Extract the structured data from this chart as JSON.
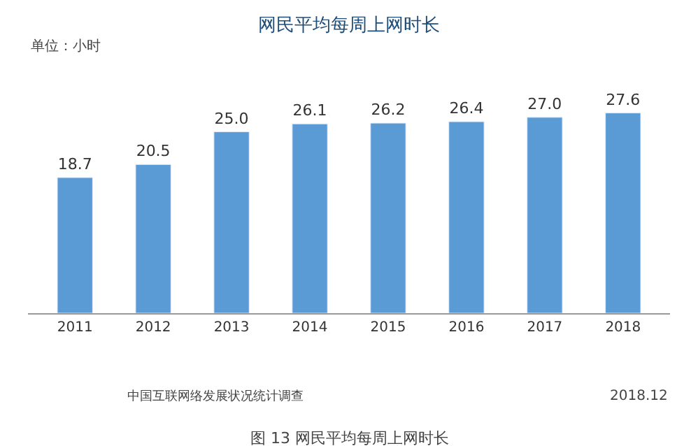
{
  "chart_data": {
    "type": "bar",
    "title": "网民平均每周上网时长",
    "categories": [
      "2011",
      "2012",
      "2013",
      "2014",
      "2015",
      "2016",
      "2017",
      "2018"
    ],
    "values": [
      18.7,
      20.5,
      25.0,
      26.1,
      26.2,
      26.4,
      27.0,
      27.6
    ],
    "value_labels": [
      "18.7",
      "20.5",
      "25.0",
      "26.1",
      "26.2",
      "26.4",
      "27.0",
      "27.6"
    ],
    "color": "#5b9bd5",
    "legend": false,
    "annotations": [
      "单位：小时",
      "中国互联网络发展状况统计调查",
      "2018.12",
      "图 13 网民平均每周上网时长"
    ]
  }
}
